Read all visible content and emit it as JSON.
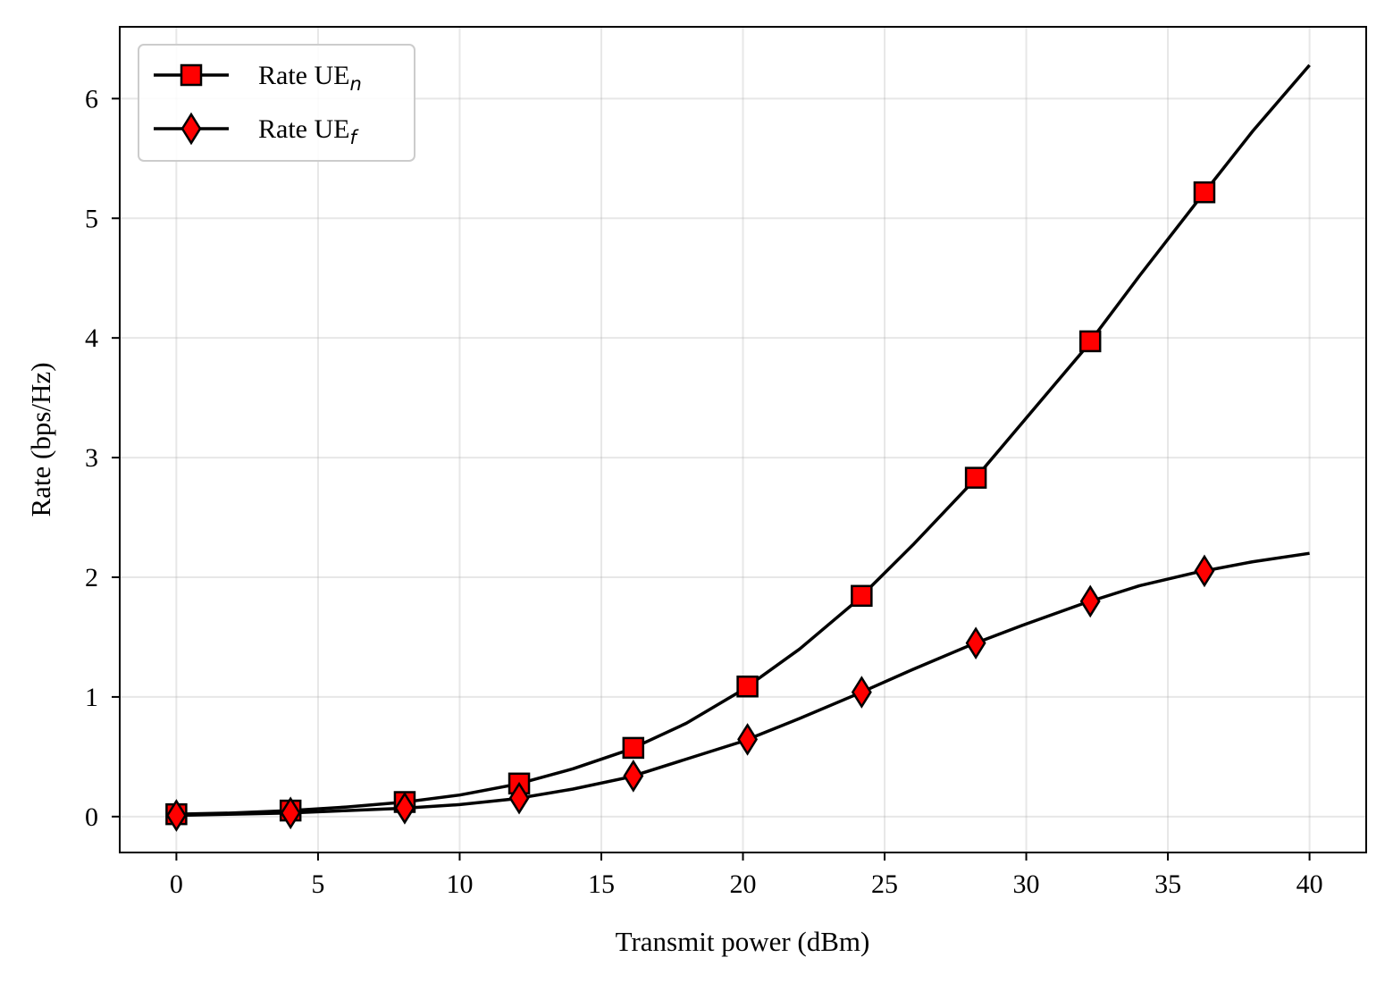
{
  "chart_data": {
    "type": "line",
    "title": "",
    "xlabel": "Transmit power (dBm)",
    "ylabel": "Rate (bps/Hz)",
    "xlim": [
      -2,
      42
    ],
    "ylim": [
      -0.3,
      6.6
    ],
    "xticks": [
      0,
      5,
      10,
      15,
      20,
      25,
      30,
      35,
      40
    ],
    "yticks": [
      0,
      1,
      2,
      3,
      4,
      5,
      6
    ],
    "grid": true,
    "legend_position": "top-left",
    "series": [
      {
        "name": "Rate UE",
        "name_subscript": "n",
        "marker": "square",
        "line_color": "#000000",
        "marker_face": "#ff0000",
        "x": [
          0,
          2,
          4,
          6,
          8,
          10,
          12,
          14,
          16,
          18,
          20,
          22,
          24,
          26,
          28,
          30,
          32,
          34,
          36,
          38,
          40
        ],
        "y": [
          0.02,
          0.03,
          0.05,
          0.08,
          0.12,
          0.18,
          0.27,
          0.4,
          0.56,
          0.78,
          1.06,
          1.4,
          1.8,
          2.27,
          2.77,
          3.33,
          3.89,
          4.52,
          5.13,
          5.73,
          6.28
        ]
      },
      {
        "name": "Rate UE",
        "name_subscript": "f",
        "marker": "diamond",
        "line_color": "#000000",
        "marker_face": "#ff0000",
        "x": [
          0,
          2,
          4,
          6,
          8,
          10,
          12,
          14,
          16,
          18,
          20,
          22,
          24,
          26,
          28,
          30,
          32,
          34,
          36,
          38,
          40
        ],
        "y": [
          0.01,
          0.02,
          0.03,
          0.05,
          0.07,
          0.1,
          0.15,
          0.23,
          0.33,
          0.48,
          0.63,
          0.82,
          1.02,
          1.23,
          1.43,
          1.61,
          1.78,
          1.93,
          2.04,
          2.13,
          2.2
        ]
      }
    ],
    "marker_x": [
      0,
      4.03,
      8.06,
      12.1,
      16.13,
      20.16,
      24.19,
      28.22,
      32.26,
      36.29
    ]
  }
}
